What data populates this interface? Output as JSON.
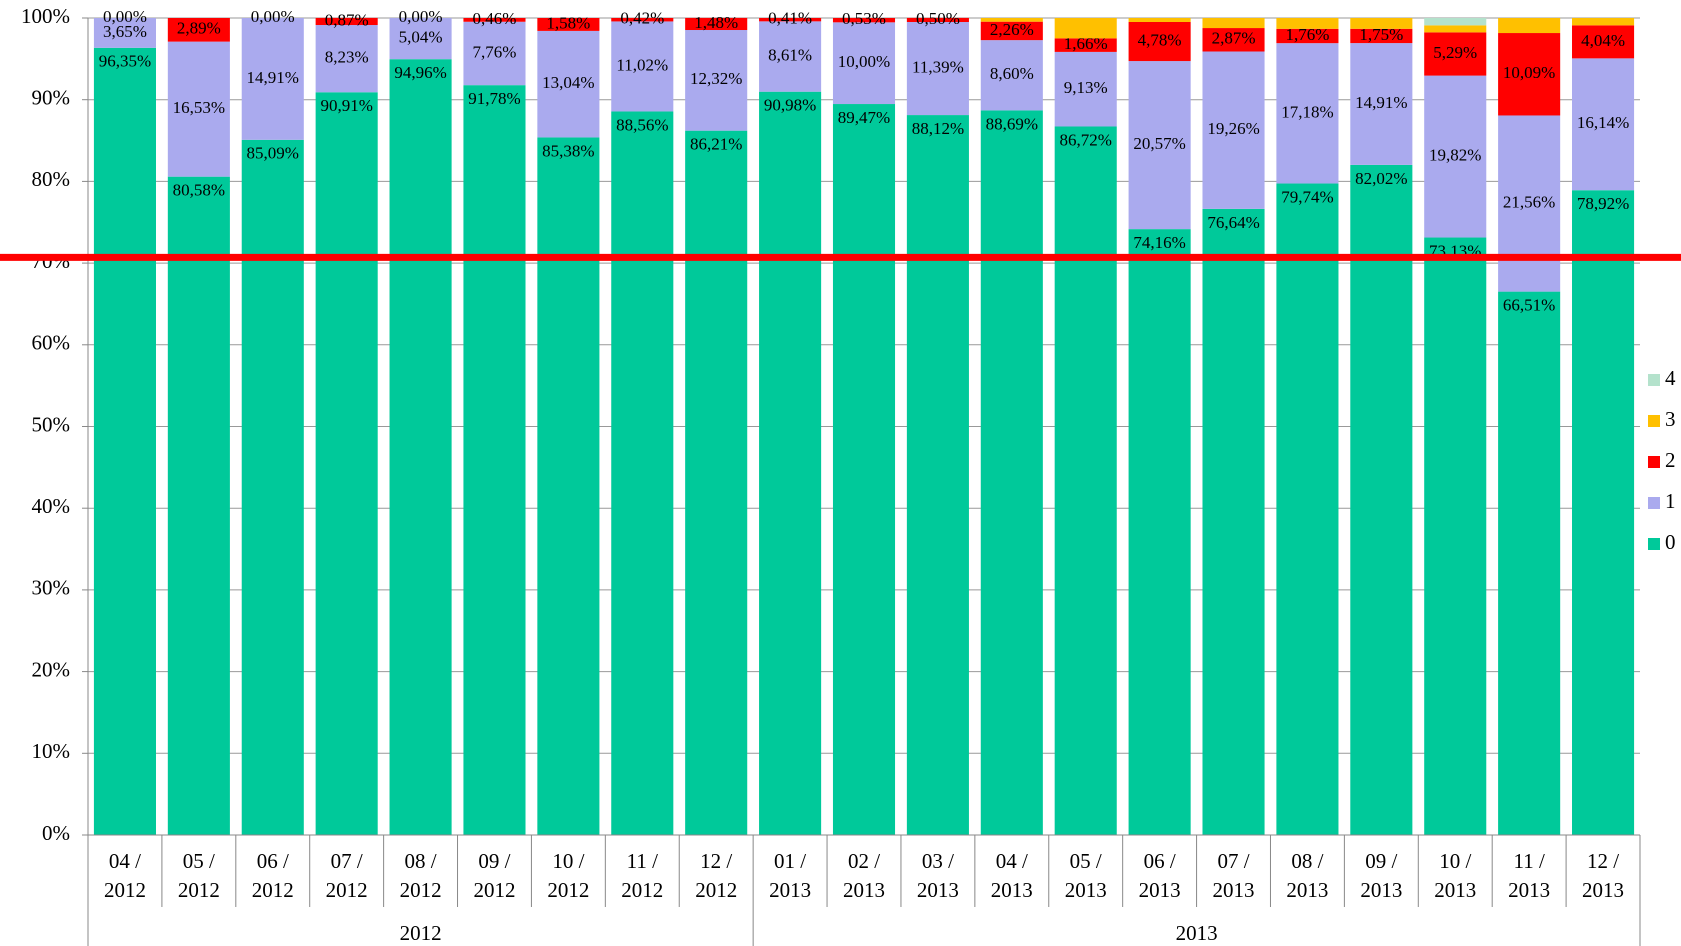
{
  "chart_data": {
    "type": "stacked_bar",
    "categories": [
      "04 /",
      "05 /",
      "06 /",
      "07 /",
      "08 /",
      "09 /",
      "10 /",
      "11 /",
      "12 /",
      "01 /",
      "02 /",
      "03 /",
      "04 /",
      "05 /",
      "06 /",
      "07 /",
      "08 /",
      "09 /",
      "10 /",
      "11 /",
      "12 /"
    ],
    "category_years": [
      "2012",
      "2012",
      "2012",
      "2012",
      "2012",
      "2012",
      "2012",
      "2012",
      "2012",
      "2013",
      "2013",
      "2013",
      "2013",
      "2013",
      "2013",
      "2013",
      "2013",
      "2013",
      "2013",
      "2013",
      "2013"
    ],
    "groups": [
      "2012",
      "2013"
    ],
    "series": [
      {
        "name": "0",
        "color": "#00c99a",
        "values": [
          96.35,
          80.58,
          85.09,
          90.91,
          94.96,
          91.78,
          85.38,
          88.56,
          86.21,
          90.98,
          89.47,
          88.12,
          88.69,
          86.72,
          74.16,
          76.64,
          79.74,
          82.02,
          73.13,
          66.51,
          78.92
        ],
        "value_labels": [
          "96,35%",
          "80,58%",
          "85,09%",
          "90,91%",
          "94,96%",
          "91,78%",
          "85,38%",
          "88,56%",
          "86,21%",
          "90,98%",
          "89,47%",
          "88,12%",
          "88,69%",
          "86,72%",
          "74,16%",
          "76,64%",
          "79,74%",
          "82,02%",
          "73,13%",
          "66,51%",
          "78,92%"
        ]
      },
      {
        "name": "1",
        "color": "#aaaaee",
        "values": [
          3.65,
          16.53,
          14.91,
          8.23,
          5.04,
          7.76,
          13.04,
          11.02,
          12.32,
          8.61,
          10.0,
          11.39,
          8.6,
          9.13,
          20.57,
          19.26,
          17.18,
          14.91,
          19.82,
          21.56,
          16.14
        ],
        "value_labels": [
          "3,65%",
          "16,53%",
          "14,91%",
          "8,23%",
          "5,04%",
          "7,76%",
          "13,04%",
          "11,02%",
          "12,32%",
          "8,61%",
          "10,00%",
          "11,39%",
          "8,60%",
          "9,13%",
          "20,57%",
          "19,26%",
          "17,18%",
          "14,91%",
          "19,82%",
          "21,56%",
          "16,14%"
        ]
      },
      {
        "name": "2",
        "color": "#ff0000",
        "values": [
          0.0,
          2.89,
          0.0,
          0.87,
          0.0,
          0.46,
          1.58,
          0.42,
          1.48,
          0.41,
          0.53,
          0.5,
          2.26,
          1.66,
          4.78,
          2.87,
          1.76,
          1.75,
          5.29,
          10.09,
          4.04
        ],
        "value_labels": [
          "0,00%",
          "2,89%",
          "0,00%",
          "0,87%",
          "0,00%",
          "0,46%",
          "1,58%",
          "0,42%",
          "1,48%",
          "0,41%",
          "0,53%",
          "0,50%",
          "2,26%",
          "1,66%",
          "4,78%",
          "2,87%",
          "1,76%",
          "1,75%",
          "5,29%",
          "10,09%",
          "4,04%"
        ]
      },
      {
        "name": "3",
        "color": "#ffc000",
        "values": [
          0,
          0,
          0,
          0,
          0,
          0,
          0,
          0,
          0,
          0,
          0,
          0,
          0.45,
          2.49,
          0.49,
          1.23,
          1.32,
          1.32,
          0.86,
          1.84,
          0.9
        ]
      },
      {
        "name": "4",
        "color": "#b4e2cc",
        "values": [
          0,
          0,
          0,
          0,
          0,
          0,
          0,
          0,
          0,
          0,
          0,
          0,
          0,
          0,
          0,
          0,
          0,
          0,
          0.9,
          0,
          0
        ]
      }
    ],
    "ylim": [
      0,
      100
    ],
    "yticks": [
      {
        "value": 0,
        "label": "0%"
      },
      {
        "value": 10,
        "label": "10%"
      },
      {
        "value": 20,
        "label": "20%"
      },
      {
        "value": 30,
        "label": "30%"
      },
      {
        "value": 40,
        "label": "40%"
      },
      {
        "value": 50,
        "label": "50%"
      },
      {
        "value": 60,
        "label": "60%"
      },
      {
        "value": 70,
        "label": "70%"
      },
      {
        "value": 80,
        "label": "80%"
      },
      {
        "value": 90,
        "label": "90%"
      },
      {
        "value": 100,
        "label": "100%"
      }
    ],
    "grid": true,
    "legend": "right",
    "reference_line": {
      "value": 70.7,
      "color": "#ff0000"
    }
  }
}
